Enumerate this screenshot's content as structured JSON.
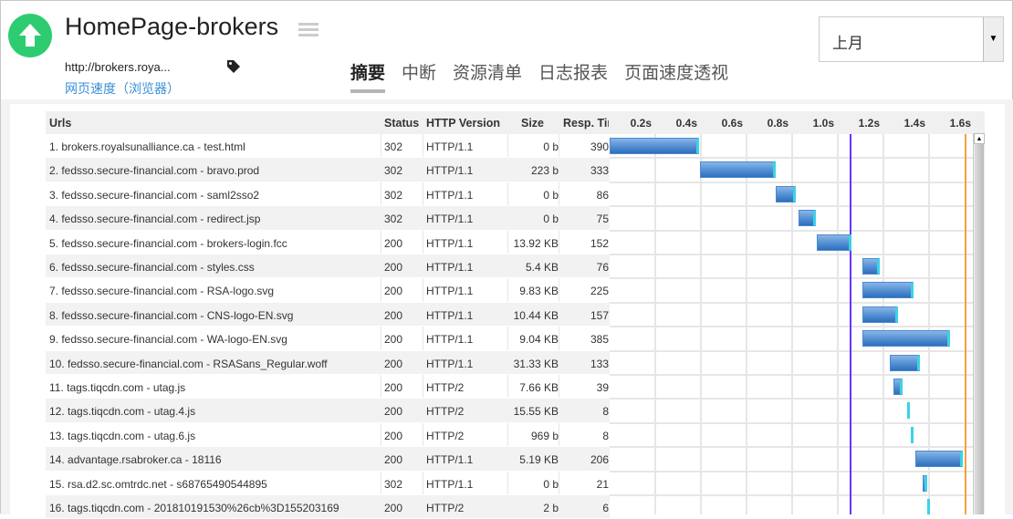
{
  "header": {
    "title": "HomePage-brokers",
    "url": "http://brokers.roya...",
    "subtitle": "网页速度（浏览器）",
    "period": "上月"
  },
  "tabs": [
    {
      "label": "摘要",
      "active": true
    },
    {
      "label": "中断"
    },
    {
      "label": "资源清单"
    },
    {
      "label": "日志报表"
    },
    {
      "label": "页面速度透视"
    }
  ],
  "table": {
    "columns": [
      "Urls",
      "Status",
      "HTTP Version",
      "Size",
      "Resp. Time"
    ],
    "ticks": [
      "0.2s",
      "0.4s",
      "0.6s",
      "0.8s",
      "1.0s",
      "1.2s",
      "1.4s",
      "1.6s"
    ],
    "markers": {
      "purple_s": 1.056,
      "orange_s": 1.56,
      "purple_color": "#6633ff",
      "orange_color": "#f5a040"
    },
    "rows": [
      {
        "url": "1. brokers.royalsunalliance.ca - test.html",
        "status": "302",
        "http": "HTTP/1.1",
        "size": "0 b",
        "resp": "390",
        "start": 0
      },
      {
        "url": "2. fedsso.secure-financial.com - bravo.prod",
        "status": "302",
        "http": "HTTP/1.1",
        "size": "223 b",
        "resp": "333",
        "start": 0.396
      },
      {
        "url": "3. fedsso.secure-financial.com - saml2sso2",
        "status": "302",
        "http": "HTTP/1.1",
        "size": "0 b",
        "resp": "86",
        "start": 0.728
      },
      {
        "url": "4. fedsso.secure-financial.com - redirect.jsp",
        "status": "302",
        "http": "HTTP/1.1",
        "size": "0 b",
        "resp": "75",
        "start": 0.828
      },
      {
        "url": "5. fedsso.secure-financial.com - brokers-login.fcc",
        "status": "200",
        "http": "HTTP/1.1",
        "size": "13.92 KB",
        "resp": "152",
        "start": 0.908
      },
      {
        "url": "6. fedsso.secure-financial.com - styles.css",
        "status": "200",
        "http": "HTTP/1.1",
        "size": "5.4 KB",
        "resp": "76",
        "start": 1.108
      },
      {
        "url": "7. fedsso.secure-financial.com - RSA-logo.svg",
        "status": "200",
        "http": "HTTP/1.1",
        "size": "9.83 KB",
        "resp": "225",
        "start": 1.108
      },
      {
        "url": "8. fedsso.secure-financial.com - CNS-logo-EN.svg",
        "status": "200",
        "http": "HTTP/1.1",
        "size": "10.44 KB",
        "resp": "157",
        "start": 1.108
      },
      {
        "url": "9. fedsso.secure-financial.com - WA-logo-EN.svg",
        "status": "200",
        "http": "HTTP/1.1",
        "size": "9.04 KB",
        "resp": "385",
        "start": 1.108
      },
      {
        "url": "10. fedsso.secure-financial.com - RSASans_Regular.woff",
        "status": "200",
        "http": "HTTP/1.1",
        "size": "31.33 KB",
        "resp": "133",
        "start": 1.228
      },
      {
        "url": "11. tags.tiqcdn.com - utag.js",
        "status": "200",
        "http": "HTTP/2",
        "size": "7.66 KB",
        "resp": "39",
        "start": 1.244
      },
      {
        "url": "12. tags.tiqcdn.com - utag.4.js",
        "status": "200",
        "http": "HTTP/2",
        "size": "15.55 KB",
        "resp": "8",
        "start": 1.304
      },
      {
        "url": "13. tags.tiqcdn.com - utag.6.js",
        "status": "200",
        "http": "HTTP/2",
        "size": "969 b",
        "resp": "8",
        "start": 1.32
      },
      {
        "url": "14. advantage.rsabroker.ca - 18116",
        "status": "200",
        "http": "HTTP/1.1",
        "size": "5.19 KB",
        "resp": "206",
        "start": 1.34
      },
      {
        "url": "15. rsa.d2.sc.omtrdc.net - s68765490544895",
        "status": "302",
        "http": "HTTP/1.1",
        "size": "0 b",
        "resp": "21",
        "start": 1.372
      },
      {
        "url": "16. tags.tiqcdn.com - 201810191530%26cb%3D155203169",
        "status": "200",
        "http": "HTTP/2",
        "size": "2 b",
        "resp": "6",
        "start": 1.392
      }
    ]
  }
}
